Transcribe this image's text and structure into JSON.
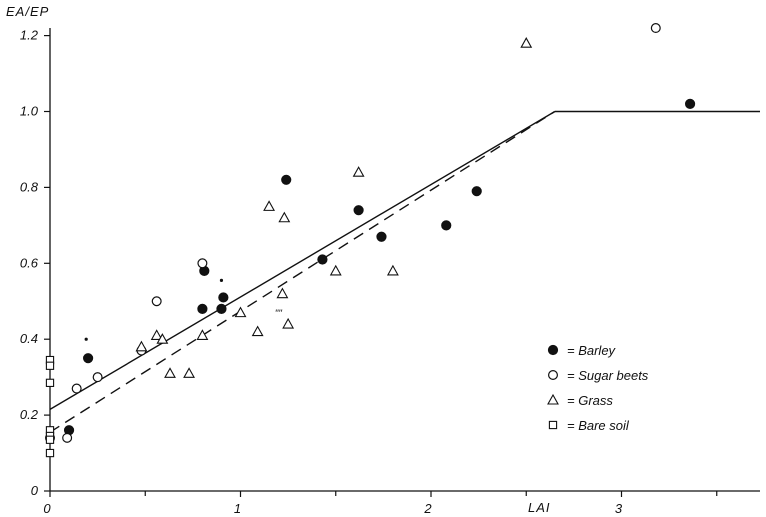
{
  "chart_data": {
    "type": "scatter",
    "title": "",
    "xlabel": "LAI",
    "ylabel": "EA/EP",
    "xlim": [
      0,
      3.8
    ],
    "ylim": [
      0,
      1.22
    ],
    "x_ticks": [
      {
        "value": 0,
        "label": "0"
      },
      {
        "value": 1,
        "label": "1"
      },
      {
        "value": 2,
        "label": "2"
      },
      {
        "value": 3,
        "label": "3"
      }
    ],
    "x_minor_ticks": [
      0.5,
      1.5,
      2.5,
      3.5
    ],
    "y_ticks": [
      {
        "value": 0,
        "label": "0"
      },
      {
        "value": 0.2,
        "label": "0.2"
      },
      {
        "value": 0.4,
        "label": "0.4"
      },
      {
        "value": 0.6,
        "label": "0.6"
      },
      {
        "value": 0.8,
        "label": "0.8"
      },
      {
        "value": 1.0,
        "label": "1.0"
      },
      {
        "value": 1.2,
        "label": "1.2"
      }
    ],
    "grid": false,
    "legend_position": "right",
    "series": [
      {
        "name": "Barley",
        "marker": "filled-circle",
        "points": [
          [
            0.1,
            0.16
          ],
          [
            0.2,
            0.35
          ],
          [
            0.8,
            0.48
          ],
          [
            0.81,
            0.58
          ],
          [
            0.9,
            0.48
          ],
          [
            0.91,
            0.51
          ],
          [
            1.24,
            0.82
          ],
          [
            1.43,
            0.61
          ],
          [
            1.62,
            0.74
          ],
          [
            1.74,
            0.67
          ],
          [
            2.08,
            0.7
          ],
          [
            2.24,
            0.79
          ],
          [
            3.36,
            1.02
          ]
        ]
      },
      {
        "name": "Sugar beets",
        "marker": "open-circle",
        "points": [
          [
            0.0,
            0.14
          ],
          [
            0.09,
            0.14
          ],
          [
            0.14,
            0.27
          ],
          [
            0.25,
            0.3
          ],
          [
            0.48,
            0.37
          ],
          [
            0.56,
            0.5
          ],
          [
            0.8,
            0.6
          ],
          [
            3.18,
            1.22
          ]
        ]
      },
      {
        "name": "Grass",
        "marker": "open-triangle",
        "points": [
          [
            0.48,
            0.38
          ],
          [
            0.56,
            0.41
          ],
          [
            0.59,
            0.4
          ],
          [
            0.63,
            0.31
          ],
          [
            0.73,
            0.31
          ],
          [
            0.8,
            0.41
          ],
          [
            1.0,
            0.47
          ],
          [
            1.09,
            0.42
          ],
          [
            1.15,
            0.75
          ],
          [
            1.23,
            0.72
          ],
          [
            1.22,
            0.52
          ],
          [
            1.25,
            0.44
          ],
          [
            1.5,
            0.58
          ],
          [
            1.62,
            0.84
          ],
          [
            1.8,
            0.58
          ],
          [
            2.5,
            1.18
          ]
        ]
      },
      {
        "name": "Bare soil",
        "marker": "open-square",
        "points": [
          [
            0.0,
            0.345
          ],
          [
            0.0,
            0.33
          ],
          [
            0.0,
            0.285
          ],
          [
            0.0,
            0.16
          ],
          [
            0.0,
            0.145
          ],
          [
            0.0,
            0.135
          ],
          [
            0.0,
            0.1
          ]
        ]
      }
    ],
    "lines": [
      {
        "style": "solid",
        "from": [
          0,
          0.215
        ],
        "to": [
          2.65,
          1.0
        ]
      },
      {
        "style": "dashed",
        "from": [
          0,
          0.155
        ],
        "to": [
          2.65,
          1.0
        ]
      },
      {
        "style": "solid",
        "from": [
          2.65,
          1.0
        ],
        "to": [
          3.8,
          1.0
        ]
      }
    ],
    "stray_marks": [
      {
        "x": 0.19,
        "y": 0.4,
        "kind": "dot"
      },
      {
        "x": 0.9,
        "y": 0.555,
        "kind": "dot"
      },
      {
        "x": 1.18,
        "y": 0.46,
        "kind": "text",
        "text": "\"\""
      }
    ],
    "legend": [
      {
        "marker": "filled-circle",
        "label": "= Barley"
      },
      {
        "marker": "open-circle",
        "label": "= Sugar beets"
      },
      {
        "marker": "open-triangle",
        "label": "= Grass"
      },
      {
        "marker": "open-square",
        "label": "= Bare soil"
      }
    ]
  }
}
